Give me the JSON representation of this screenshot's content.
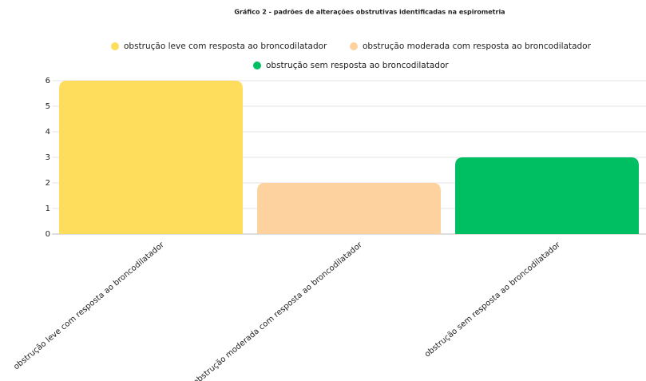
{
  "chart_data": {
    "type": "bar",
    "title": "Gráfico 2 - padrões de alterações obstrutivas identificadas na espirometria",
    "categories": [
      "obstrução leve com resposta ao broncodilatador",
      "obstrução moderada com resposta ao broncodilatador",
      "obstrução sem resposta ao broncodilatador"
    ],
    "values": [
      6,
      2,
      3
    ],
    "colors": [
      "#ffdd5c",
      "#fed29e",
      "#00bf63"
    ],
    "ylim": [
      0,
      6
    ],
    "yticks": [
      0,
      1,
      2,
      3,
      4,
      5,
      6
    ],
    "grid": true,
    "legend": "top"
  }
}
